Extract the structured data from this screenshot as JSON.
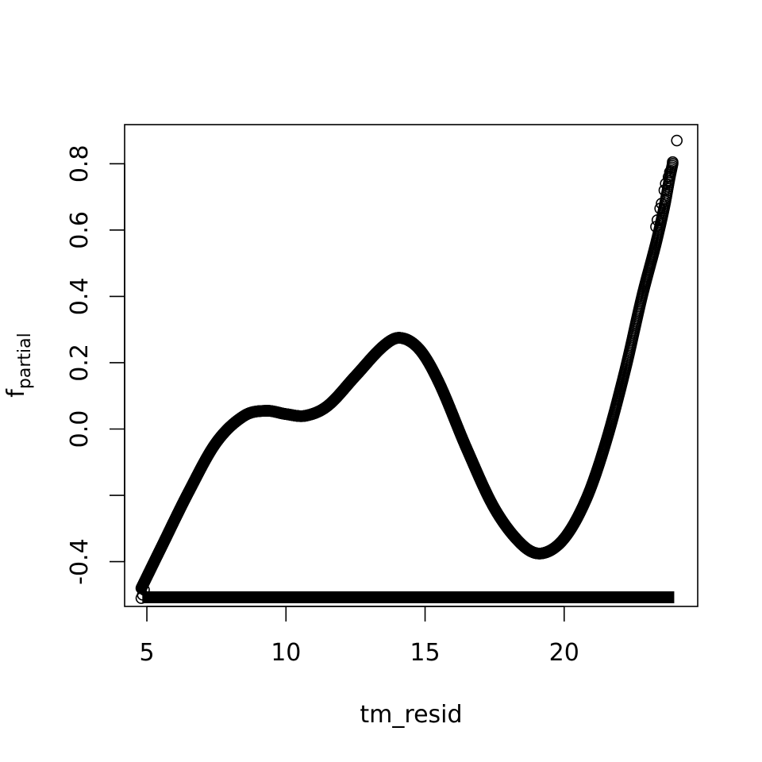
{
  "chart_data": {
    "type": "scatter",
    "title": "",
    "xlabel": "tm_resid",
    "ylabel": {
      "base": "f",
      "subscript": "partial"
    },
    "xlim": [
      4.2,
      24.8
    ],
    "ylim": [
      -0.535,
      0.918
    ],
    "x_ticks": [
      5,
      10,
      15,
      20
    ],
    "x_tick_labels": [
      "5",
      "10",
      "15",
      "20"
    ],
    "y_ticks": [
      -0.4,
      -0.2,
      0.0,
      0.2,
      0.4,
      0.6,
      0.8
    ],
    "y_tick_labels": [
      "-0.4",
      "",
      "0.0",
      "0.2",
      "0.4",
      "0.6",
      "0.8"
    ],
    "grid": false,
    "legend": "none",
    "marker": "open-circle",
    "curve_points": [
      {
        "x": 4.8,
        "y": -0.48
      },
      {
        "x": 5.5,
        "y": -0.36
      },
      {
        "x": 6.5,
        "y": -0.19
      },
      {
        "x": 7.5,
        "y": -0.04
      },
      {
        "x": 8.5,
        "y": 0.04
      },
      {
        "x": 9.3,
        "y": 0.055
      },
      {
        "x": 10.0,
        "y": 0.045
      },
      {
        "x": 10.7,
        "y": 0.04
      },
      {
        "x": 11.5,
        "y": 0.07
      },
      {
        "x": 12.5,
        "y": 0.16
      },
      {
        "x": 13.5,
        "y": 0.25
      },
      {
        "x": 14.1,
        "y": 0.275
      },
      {
        "x": 14.8,
        "y": 0.24
      },
      {
        "x": 15.5,
        "y": 0.14
      },
      {
        "x": 16.5,
        "y": -0.06
      },
      {
        "x": 17.5,
        "y": -0.24
      },
      {
        "x": 18.5,
        "y": -0.35
      },
      {
        "x": 19.2,
        "y": -0.375
      },
      {
        "x": 20.0,
        "y": -0.33
      },
      {
        "x": 20.8,
        "y": -0.21
      },
      {
        "x": 21.5,
        "y": -0.04
      },
      {
        "x": 22.2,
        "y": 0.18
      },
      {
        "x": 22.8,
        "y": 0.4
      },
      {
        "x": 23.3,
        "y": 0.56
      },
      {
        "x": 23.6,
        "y": 0.67
      },
      {
        "x": 23.8,
        "y": 0.76
      },
      {
        "x": 23.9,
        "y": 0.8
      }
    ],
    "outlier_points": [
      {
        "x": 24.05,
        "y": 0.87
      },
      {
        "x": 23.9,
        "y": 0.805
      },
      {
        "x": 23.8,
        "y": 0.775
      },
      {
        "x": 23.75,
        "y": 0.76
      },
      {
        "x": 23.65,
        "y": 0.74
      },
      {
        "x": 23.6,
        "y": 0.72
      },
      {
        "x": 23.5,
        "y": 0.68
      },
      {
        "x": 23.45,
        "y": 0.665
      },
      {
        "x": 23.35,
        "y": 0.63
      },
      {
        "x": 23.3,
        "y": 0.61
      },
      {
        "x": 4.9,
        "y": -0.485
      },
      {
        "x": 4.85,
        "y": -0.5
      },
      {
        "x": 4.8,
        "y": -0.51
      }
    ],
    "rug_range": [
      4.85,
      23.95
    ]
  }
}
